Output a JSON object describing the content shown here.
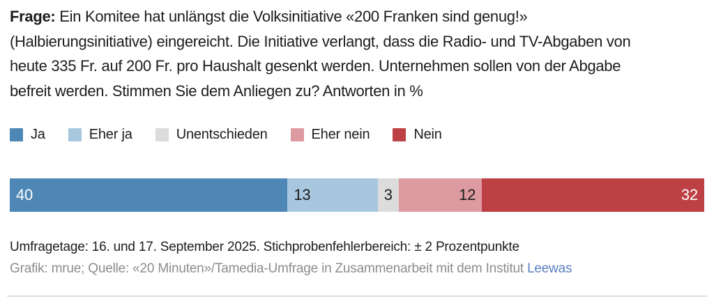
{
  "question": {
    "label": "Frage:",
    "lines": [
      "Ein Komitee hat unlängst die Volksinitiative «200 Franken sind genug!»",
      "(Halbierungsinitiative) eingereicht. Die Initiative verlangt, dass die Radio- und TV-Abgaben von",
      "heute 335 Fr. auf 200 Fr. pro Haushalt gesenkt werden. Unternehmen sollen von der Abgabe",
      "befreit werden. Stimmen Sie dem Anliegen zu? Antworten in %"
    ]
  },
  "chart_data": {
    "type": "bar",
    "variant": "horizontal-stacked",
    "title": "Stimmen Sie dem Anliegen zu? Antworten in %",
    "unit": "%",
    "categories": [
      "Ja",
      "Eher ja",
      "Unentschieden",
      "Eher nein",
      "Nein"
    ],
    "values": [
      40,
      13,
      3,
      12,
      32
    ],
    "colors": [
      "#4e87b5",
      "#a7c7de",
      "#dcdcdc",
      "#de9aa1",
      "#bc4044"
    ],
    "label_colors": [
      "#ffffff",
      "#1c1c1c",
      "#1c1c1c",
      "#1c1c1c",
      "#ffffff"
    ],
    "label_align": [
      "left",
      "left",
      "center",
      "right",
      "right"
    ],
    "xlim": [
      0,
      100
    ],
    "legend_position": "top",
    "grid": false
  },
  "footer": {
    "line1": "Umfragetage: 16. und 17. September 2025. Stichprobenfehlerbereich: ± 2 Prozentpunkte",
    "line2_prefix": "Grafik: mrue; Quelle: «20 Minuten»/Tamedia-Umfrage in Zusammenarbeit mit dem Institut ",
    "link_label": "Leewas"
  },
  "colors": {
    "text": "#1c1c1c",
    "muted_text": "#8c8c8c",
    "link": "#5b7fc1",
    "divider": "#dedede"
  }
}
